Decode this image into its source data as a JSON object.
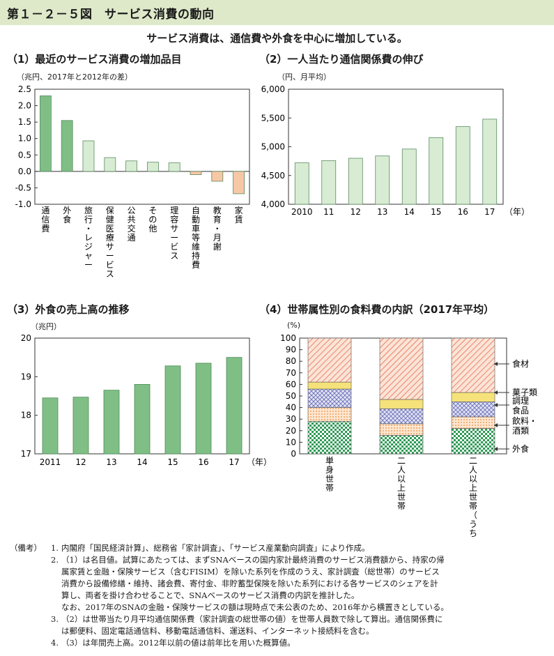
{
  "figure_title": "第１－２－５図　サービス消費の動向",
  "subtitle": "サービス消費は、通信費や外食を中心に増加している。",
  "chart_data": [
    {
      "id": "p1",
      "type": "bar",
      "title": "（1）最近のサービス消費の増加品目",
      "unit": "（兆円、2017年と2012年の差）",
      "categories": [
        "通信費",
        "外食",
        "旅行・レジャー",
        "保健医療サービス",
        "公共交通",
        "その他",
        "理容サービス",
        "自動車等維持費",
        "教育・月謝",
        "家賃"
      ],
      "values": [
        2.3,
        1.55,
        0.93,
        0.42,
        0.32,
        0.28,
        0.26,
        -0.1,
        -0.3,
        -0.68
      ],
      "ylim": [
        -1.0,
        2.5
      ],
      "yticks": [
        "2.5",
        "2.0",
        "1.5",
        "1.0",
        "0.5",
        "0.0",
        "-0.5",
        "-1.0"
      ],
      "colors": {
        "top": "#7fbf86",
        "mid": "#d8ecd3",
        "neg": "#f7c7a6"
      }
    },
    {
      "id": "p2",
      "type": "bar",
      "title": "（2）一人当たり通信関係費の伸び",
      "unit": "（円、月平均）",
      "categories": [
        "2010",
        "11",
        "12",
        "13",
        "14",
        "15",
        "16",
        "17"
      ],
      "x_suffix": "（年）",
      "values": [
        4720,
        4760,
        4800,
        4840,
        4960,
        5160,
        5350,
        5480
      ],
      "ylim": [
        4000,
        6000
      ],
      "yticks": [
        "6,000",
        "5,500",
        "5,000",
        "4,500",
        "4,000"
      ],
      "colors": {
        "bar": "#d8ecd3"
      }
    },
    {
      "id": "p3",
      "type": "bar",
      "title": "（3）外食の売上高の推移",
      "unit": "（兆円）",
      "categories": [
        "2011",
        "12",
        "13",
        "14",
        "15",
        "16",
        "17"
      ],
      "x_suffix": "（年）",
      "values": [
        18.45,
        18.47,
        18.65,
        18.8,
        19.28,
        19.35,
        19.5
      ],
      "ylim": [
        17,
        20
      ],
      "yticks": [
        "20",
        "19",
        "18",
        "17"
      ],
      "colors": {
        "bar": "#7fbf86"
      }
    },
    {
      "id": "p4",
      "type": "stacked-bar",
      "title": "（4）世帯属性別の食料費の内訳（2017年平均）",
      "unit": "(%)",
      "categories": [
        "単身世帯",
        "二人以上世帯",
        "二人以上世帯（うち共働き世帯）"
      ],
      "series": [
        {
          "name": "外食",
          "values": [
            28,
            16,
            22
          ]
        },
        {
          "name": "飲料・酒類",
          "values": [
            12,
            10,
            10
          ]
        },
        {
          "name": "調理食品",
          "values": [
            16,
            13,
            13
          ]
        },
        {
          "name": "菓子類",
          "values": [
            6,
            8,
            8
          ]
        },
        {
          "name": "食材",
          "values": [
            38,
            53,
            47
          ]
        }
      ],
      "ylim": [
        0,
        100
      ],
      "yticks": [
        "100",
        "90",
        "80",
        "70",
        "60",
        "50",
        "40",
        "30",
        "20",
        "10",
        "0"
      ],
      "colors": {
        "外食": "#2e9a55",
        "飲料・酒類": "#f2a15f",
        "調理食品": "#6a6fb7",
        "菓子類": "#f6e27a",
        "食材": "#e66a52"
      }
    }
  ],
  "notes": {
    "label": "（備考）",
    "items": [
      {
        "num": "1.",
        "lines": [
          "内閣府「国民経済計算」、総務省「家計調査」、「サービス産業動向調査」により作成。"
        ]
      },
      {
        "num": "2.",
        "lines": [
          "（1）は名目値。試算にあたっては、まずSNAベースの国内家計最終消費のサービス消費額から、持家の帰",
          "属家賃と金融・保険サービス（含むFISIM）を除いた系列を作成のうえ、家計調査（総世帯）のサービス",
          "消費から設備修繕・維持、諸会費、寄付金、非貯蓄型保険を除いた系列における各サービスのシェアを計",
          "算し、両者を掛け合わせることで、SNAベースのサービス消費の内訳を推計した。",
          "なお、2017年のSNAの金融・保険サービスの額は現時点で未公表のため、2016年から横置きとしている。"
        ]
      },
      {
        "num": "3.",
        "lines": [
          "（2）は世帯当たり月平均通信関係費（家計調査の総世帯の値）を世帯人員数で除して算出。通信関係費に",
          "は郵便料、固定電話通信料、移動電話通信料、運送料、インターネット接続料を含む。"
        ]
      },
      {
        "num": "4.",
        "lines": [
          "（3）は年間売上高。2012年以前の値は前年比を用いた概算値。"
        ]
      }
    ]
  }
}
